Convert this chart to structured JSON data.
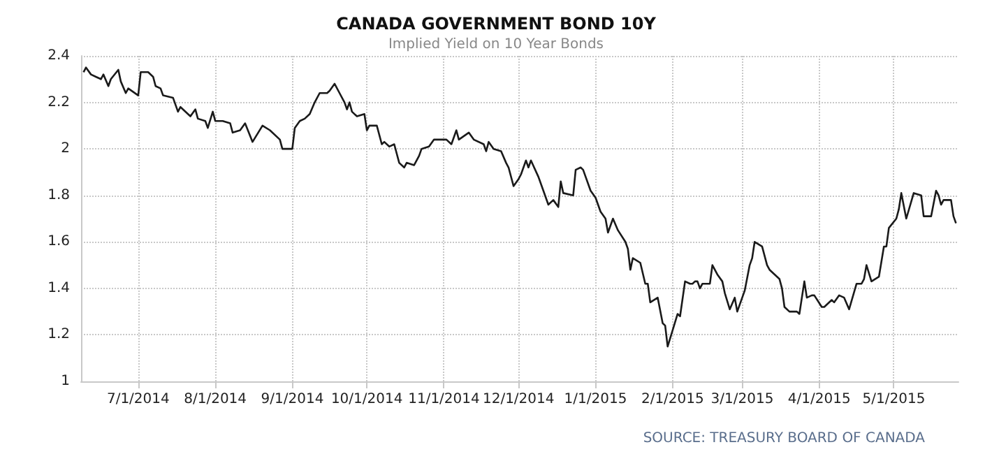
{
  "chart_data": {
    "type": "line",
    "title": "CANADA GOVERNMENT BOND 10Y",
    "subtitle": "Implied Yield on 10 Year Bonds",
    "annotations": [
      "SOURCE: TREASURY BOARD OF CANADA"
    ],
    "x": [
      "2014-06-09",
      "2014-06-10",
      "2014-06-12",
      "2014-06-14",
      "2014-06-16",
      "2014-06-17",
      "2014-06-19",
      "2014-06-20",
      "2014-06-23",
      "2014-06-24",
      "2014-06-26",
      "2014-06-27",
      "2014-07-01",
      "2014-07-02",
      "2014-07-05",
      "2014-07-07",
      "2014-07-08",
      "2014-07-10",
      "2014-07-11",
      "2014-07-15",
      "2014-07-17",
      "2014-07-18",
      "2014-07-22",
      "2014-07-24",
      "2014-07-25",
      "2014-07-28",
      "2014-07-29",
      "2014-07-31",
      "2014-08-01",
      "2014-08-04",
      "2014-08-07",
      "2014-08-08",
      "2014-08-11",
      "2014-08-13",
      "2014-08-16",
      "2014-08-20",
      "2014-08-23",
      "2014-08-27",
      "2014-08-28",
      "2014-09-01",
      "2014-09-02",
      "2014-09-04",
      "2014-09-06",
      "2014-09-08",
      "2014-09-10",
      "2014-09-12",
      "2014-09-15",
      "2014-09-16",
      "2014-09-18",
      "2014-09-20",
      "2014-09-22",
      "2014-09-23",
      "2014-09-24",
      "2014-09-25",
      "2014-09-27",
      "2014-09-30",
      "2014-10-01",
      "2014-10-02",
      "2014-10-05",
      "2014-10-07",
      "2014-10-08",
      "2014-10-10",
      "2014-10-12",
      "2014-10-14",
      "2014-10-16",
      "2014-10-17",
      "2014-10-20",
      "2014-10-22",
      "2014-10-23",
      "2014-10-26",
      "2014-10-28",
      "2014-10-31",
      "2014-11-02",
      "2014-11-04",
      "2014-11-06",
      "2014-11-07",
      "2014-11-11",
      "2014-11-13",
      "2014-11-17",
      "2014-11-18",
      "2014-11-19",
      "2014-11-21",
      "2014-11-24",
      "2014-11-26",
      "2014-11-27",
      "2014-11-29",
      "2014-12-01",
      "2014-12-02",
      "2014-12-04",
      "2014-12-05",
      "2014-12-06",
      "2014-12-09",
      "2014-12-11",
      "2014-12-13",
      "2014-12-15",
      "2014-12-17",
      "2014-12-18",
      "2014-12-19",
      "2014-12-23",
      "2014-12-24",
      "2014-12-26",
      "2014-12-27",
      "2014-12-30",
      "2015-01-01",
      "2015-01-03",
      "2015-01-05",
      "2015-01-06",
      "2015-01-08",
      "2015-01-10",
      "2015-01-13",
      "2015-01-14",
      "2015-01-15",
      "2015-01-16",
      "2015-01-19",
      "2015-01-21",
      "2015-01-22",
      "2015-01-23",
      "2015-01-26",
      "2015-01-28",
      "2015-01-29",
      "2015-01-30",
      "2015-02-01",
      "2015-02-03",
      "2015-02-04",
      "2015-02-06",
      "2015-02-08",
      "2015-02-09",
      "2015-02-10",
      "2015-02-11",
      "2015-02-12",
      "2015-02-13",
      "2015-02-16",
      "2015-02-17",
      "2015-02-19",
      "2015-02-21",
      "2015-02-22",
      "2015-02-24",
      "2015-02-26",
      "2015-02-27",
      "2015-03-02",
      "2015-03-04",
      "2015-03-05",
      "2015-03-06",
      "2015-03-09",
      "2015-03-11",
      "2015-03-12",
      "2015-03-16",
      "2015-03-17",
      "2015-03-18",
      "2015-03-20",
      "2015-03-23",
      "2015-03-24",
      "2015-03-26",
      "2015-03-27",
      "2015-03-29",
      "2015-03-30",
      "2015-04-02",
      "2015-04-03",
      "2015-04-06",
      "2015-04-07",
      "2015-04-09",
      "2015-04-11",
      "2015-04-13",
      "2015-04-16",
      "2015-04-18",
      "2015-04-19",
      "2015-04-20",
      "2015-04-22",
      "2015-04-25",
      "2015-04-27",
      "2015-04-28",
      "2015-04-29",
      "2015-05-02",
      "2015-05-03",
      "2015-05-04",
      "2015-05-06",
      "2015-05-09",
      "2015-05-12",
      "2015-05-13",
      "2015-05-16",
      "2015-05-18",
      "2015-05-19",
      "2015-05-20",
      "2015-05-21",
      "2015-05-24",
      "2015-05-25",
      "2015-05-26"
    ],
    "series": [
      {
        "color": "#1a1a1a",
        "values": [
          2.33,
          2.35,
          2.32,
          2.31,
          2.3,
          2.32,
          2.27,
          2.3,
          2.34,
          2.29,
          2.24,
          2.26,
          2.23,
          2.33,
          2.33,
          2.31,
          2.27,
          2.26,
          2.23,
          2.22,
          2.16,
          2.18,
          2.14,
          2.17,
          2.13,
          2.12,
          2.09,
          2.16,
          2.12,
          2.12,
          2.11,
          2.07,
          2.08,
          2.11,
          2.03,
          2.1,
          2.08,
          2.04,
          2.0,
          2.0,
          2.09,
          2.12,
          2.13,
          2.15,
          2.2,
          2.24,
          2.24,
          2.25,
          2.28,
          2.24,
          2.2,
          2.17,
          2.2,
          2.16,
          2.14,
          2.15,
          2.08,
          2.1,
          2.1,
          2.02,
          2.03,
          2.01,
          2.02,
          1.94,
          1.92,
          1.94,
          1.93,
          1.97,
          2.0,
          2.01,
          2.04,
          2.04,
          2.04,
          2.02,
          2.08,
          2.04,
          2.07,
          2.04,
          2.02,
          1.99,
          2.03,
          2.0,
          1.99,
          1.94,
          1.92,
          1.84,
          1.87,
          1.89,
          1.95,
          1.92,
          1.95,
          1.88,
          1.82,
          1.76,
          1.78,
          1.75,
          1.86,
          1.81,
          1.8,
          1.91,
          1.92,
          1.91,
          1.82,
          1.79,
          1.73,
          1.7,
          1.64,
          1.7,
          1.65,
          1.6,
          1.57,
          1.48,
          1.53,
          1.51,
          1.42,
          1.42,
          1.34,
          1.36,
          1.25,
          1.24,
          1.15,
          1.22,
          1.29,
          1.28,
          1.43,
          1.42,
          1.42,
          1.43,
          1.43,
          1.4,
          1.42,
          1.42,
          1.5,
          1.46,
          1.43,
          1.38,
          1.31,
          1.36,
          1.3,
          1.39,
          1.5,
          1.53,
          1.6,
          1.58,
          1.5,
          1.48,
          1.44,
          1.4,
          1.32,
          1.3,
          1.3,
          1.29,
          1.43,
          1.36,
          1.37,
          1.37,
          1.32,
          1.32,
          1.35,
          1.34,
          1.37,
          1.36,
          1.31,
          1.42,
          1.42,
          1.44,
          1.5,
          1.43,
          1.45,
          1.58,
          1.58,
          1.66,
          1.7,
          1.74,
          1.81,
          1.7,
          1.81,
          1.8,
          1.71,
          1.71,
          1.82,
          1.8,
          1.76,
          1.78,
          1.78,
          1.71,
          1.68
        ]
      }
    ],
    "xlim": [
      "2014-06-08",
      "2015-05-27"
    ],
    "xticks": [
      {
        "value": "2014-07-01",
        "label": "7/1/2014"
      },
      {
        "value": "2014-08-01",
        "label": "8/1/2014"
      },
      {
        "value": "2014-09-01",
        "label": "9/1/2014"
      },
      {
        "value": "2014-10-01",
        "label": "10/1/2014"
      },
      {
        "value": "2014-11-01",
        "label": "11/1/2014"
      },
      {
        "value": "2014-12-01",
        "label": "12/1/2014"
      },
      {
        "value": "2015-01-01",
        "label": "1/1/2015"
      },
      {
        "value": "2015-02-01",
        "label": "2/1/2015"
      },
      {
        "value": "2015-03-01",
        "label": "3/1/2015"
      },
      {
        "value": "2015-04-01",
        "label": "4/1/2015"
      },
      {
        "value": "2015-05-01",
        "label": "5/1/2015"
      }
    ],
    "ylim": [
      1,
      2.4
    ],
    "yticks": [
      1,
      1.2,
      1.4,
      1.6,
      1.8,
      2,
      2.2,
      2.4
    ],
    "grid": true,
    "marker": "none",
    "line_style": "solid"
  }
}
